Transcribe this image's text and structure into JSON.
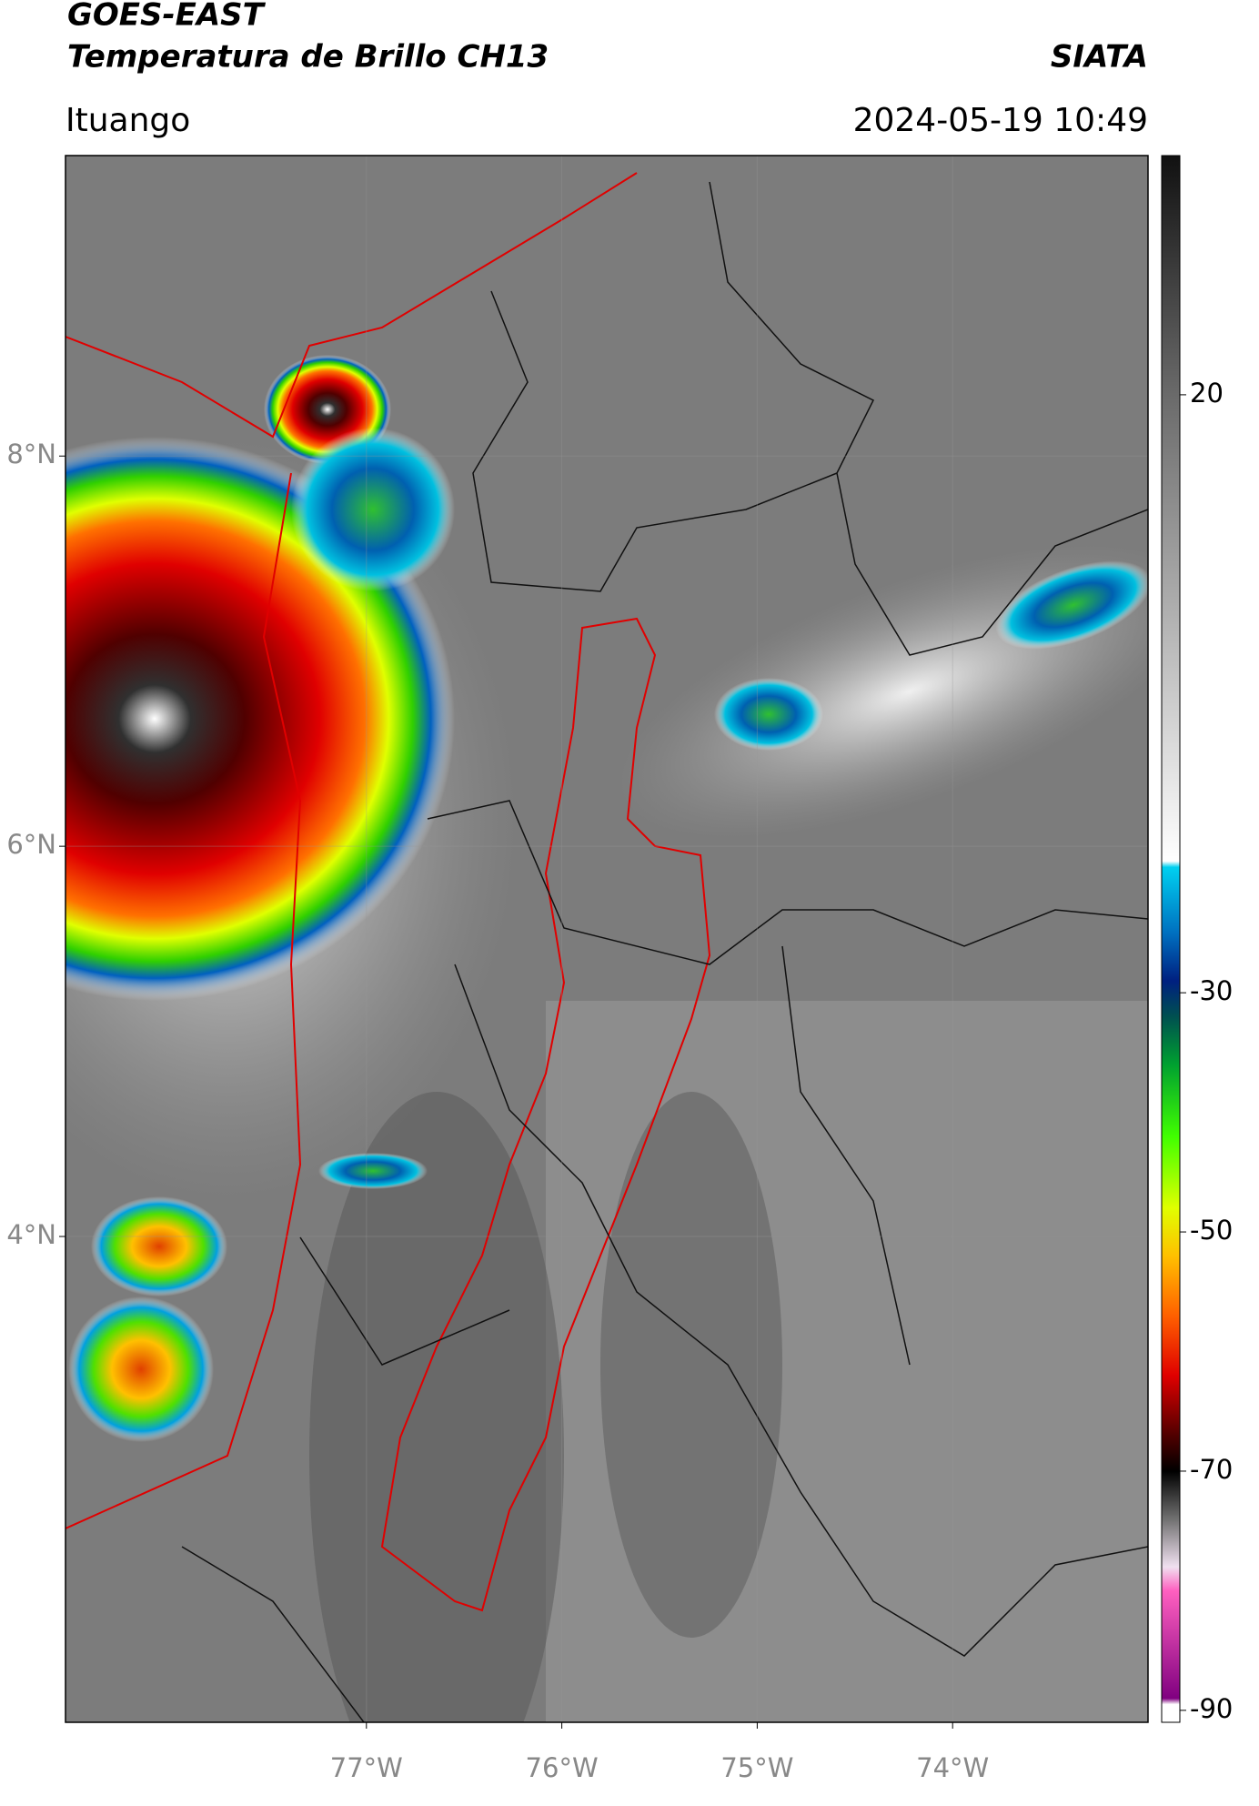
{
  "header": {
    "title_line1": "GOES-EAST",
    "title_line2": "Temperatura de Brillo CH13",
    "agency": "SIATA",
    "location": "Ituango",
    "datetime": "2024-05-19 10:49"
  },
  "map": {
    "xlim": [
      -78.54,
      -73.0
    ],
    "ylim": [
      1.51,
      9.54
    ],
    "grid": true,
    "lat_ticks": [
      {
        "value": 8,
        "label": "8°N"
      },
      {
        "value": 6,
        "label": "6°N"
      },
      {
        "value": 4,
        "label": "4°N"
      }
    ],
    "lon_ticks": [
      {
        "value": -77,
        "label": "77°W"
      },
      {
        "value": -76,
        "label": "76°W"
      },
      {
        "value": -75,
        "label": "75°W"
      },
      {
        "value": -74,
        "label": "74°W"
      }
    ]
  },
  "colorbar": {
    "lim": [
      -91,
      40
    ],
    "ticks": [
      20,
      -30,
      -50,
      -70,
      -90
    ],
    "stops": [
      [
        40,
        "#111111"
      ],
      [
        20,
        "#6a6a6a"
      ],
      [
        -19,
        "#ffffff"
      ],
      [
        -19.5,
        "#00d0f0"
      ],
      [
        -25,
        "#0070c0"
      ],
      [
        -29,
        "#002080"
      ],
      [
        -32,
        "#005050"
      ],
      [
        -36,
        "#00a030"
      ],
      [
        -42,
        "#40ff00"
      ],
      [
        -48,
        "#e0ff00"
      ],
      [
        -52,
        "#ffc000"
      ],
      [
        -57,
        "#ff6000"
      ],
      [
        -62,
        "#e00000"
      ],
      [
        -67,
        "#500000"
      ],
      [
        -70,
        "#000000"
      ],
      [
        -74,
        "#707070"
      ],
      [
        -78,
        "#f0e0f0"
      ],
      [
        -80,
        "#ff60c0"
      ],
      [
        -89,
        "#800080"
      ],
      [
        -89.5,
        "#ffffff"
      ],
      [
        -91,
        "#ffffff"
      ]
    ]
  }
}
